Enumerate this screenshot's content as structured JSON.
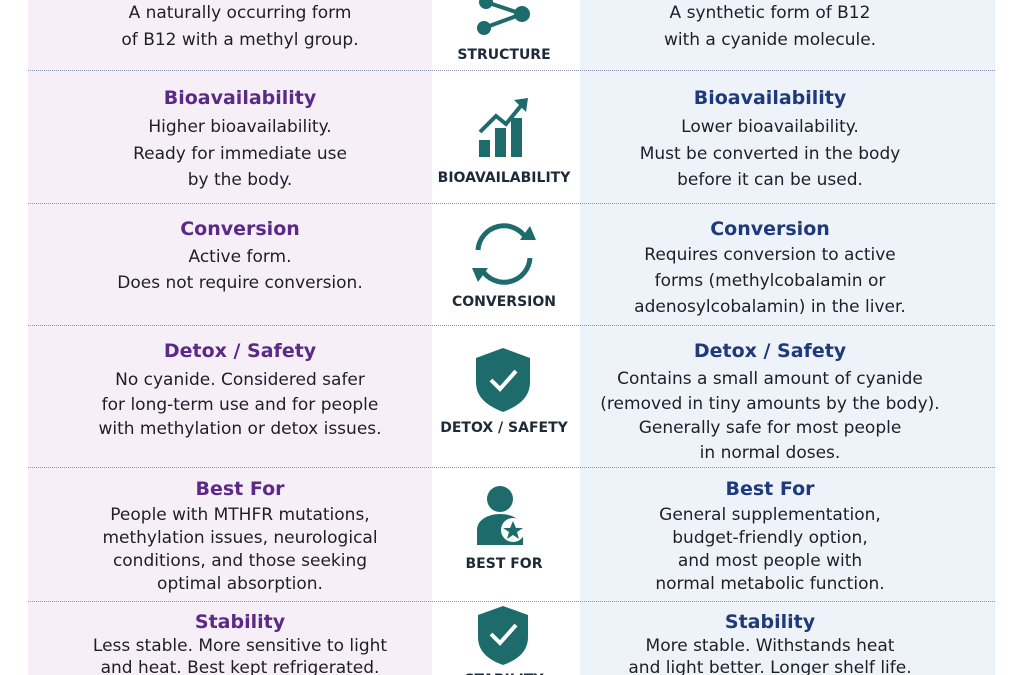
{
  "rows": [
    {
      "label": "STRUCTURE",
      "left": {
        "lines": [
          "A naturally occurring form",
          "of B12 with a methyl group."
        ]
      },
      "right": {
        "lines": [
          "A synthetic form of B12",
          "with a cyanide molecule."
        ]
      }
    },
    {
      "label": "BIOAVAILABILITY",
      "left": {
        "heading": "Bioavailability",
        "lines": [
          "Higher bioavailability.",
          "Ready for immediate use",
          "by the body."
        ]
      },
      "right": {
        "heading": "Bioavailability",
        "lines": [
          "Lower bioavailability.",
          "Must be converted in the body",
          "before it can be used."
        ]
      }
    },
    {
      "label": "CONVERSION",
      "left": {
        "heading": "Conversion",
        "lines": [
          "Active form.",
          "Does not require conversion."
        ]
      },
      "right": {
        "heading": "Conversion",
        "lines": [
          "Requires conversion to active",
          "forms (methylcobalamin or",
          "adenosylcobalamin) in the liver."
        ]
      }
    },
    {
      "label": "DETOX / SAFETY",
      "left": {
        "heading": "Detox / Safety",
        "lines": [
          "No cyanide. Considered safer",
          "for long-term use and for people",
          "with methylation or detox issues."
        ]
      },
      "right": {
        "heading": "Detox / Safety",
        "lines": [
          "Contains a small amount of cyanide",
          "(removed in tiny amounts by the body).",
          "Generally safe for most people",
          "in normal doses."
        ]
      }
    },
    {
      "label": "BEST FOR",
      "left": {
        "heading": "Best For",
        "lines": [
          "People with MTHFR mutations,",
          "methylation issues, neurological",
          "conditions, and those seeking",
          "optimal absorption."
        ]
      },
      "right": {
        "heading": "Best For",
        "lines": [
          "General supplementation,",
          "budget-friendly option,",
          "and most people with",
          "normal metabolic function."
        ]
      }
    },
    {
      "label": "STABILITY",
      "left": {
        "heading": "Stability",
        "lines": [
          "Less stable. More sensitive to light",
          "and heat. Best kept refrigerated."
        ]
      },
      "right": {
        "heading": "Stability",
        "lines": [
          "More stable. Withstands heat",
          "and light better. Longer shelf life."
        ]
      }
    }
  ]
}
